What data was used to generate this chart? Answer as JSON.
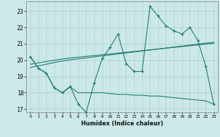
{
  "xlabel": "Humidex (Indice chaleur)",
  "x_values": [
    0,
    1,
    2,
    3,
    4,
    5,
    6,
    7,
    8,
    9,
    10,
    11,
    12,
    13,
    14,
    15,
    16,
    17,
    18,
    19,
    20,
    21,
    22,
    23
  ],
  "y_main": [
    20.2,
    19.5,
    19.2,
    18.3,
    18.0,
    18.4,
    17.3,
    16.8,
    18.6,
    20.1,
    20.8,
    21.6,
    19.8,
    19.3,
    19.3,
    23.3,
    22.7,
    22.1,
    21.8,
    21.6,
    22.0,
    21.2,
    19.6,
    17.3
  ],
  "y_trend1": [
    19.55,
    19.65,
    19.75,
    19.85,
    19.95,
    20.02,
    20.08,
    20.14,
    20.2,
    20.26,
    20.32,
    20.38,
    20.44,
    20.5,
    20.56,
    20.62,
    20.68,
    20.74,
    20.8,
    20.86,
    20.92,
    20.98,
    21.04,
    21.1
  ],
  "y_trend2": [
    19.75,
    19.83,
    19.91,
    19.99,
    20.07,
    20.13,
    20.18,
    20.23,
    20.28,
    20.33,
    20.38,
    20.43,
    20.48,
    20.53,
    20.58,
    20.63,
    20.68,
    20.73,
    20.78,
    20.83,
    20.88,
    20.93,
    20.98,
    21.03
  ],
  "y_flat": [
    20.2,
    19.5,
    19.2,
    18.3,
    18.0,
    18.35,
    18.0,
    18.0,
    18.0,
    18.0,
    17.95,
    17.9,
    17.9,
    17.85,
    17.85,
    17.8,
    17.8,
    17.75,
    17.7,
    17.65,
    17.6,
    17.55,
    17.5,
    17.3
  ],
  "line_color": "#1a7a6e",
  "bg_color": "#cce8e8",
  "grid_color": "#aad0d0",
  "ylim": [
    16.8,
    23.6
  ],
  "yticks": [
    17,
    18,
    19,
    20,
    21,
    22,
    23
  ],
  "xlim": [
    -0.5,
    23.5
  ],
  "xticks": [
    0,
    1,
    2,
    3,
    4,
    5,
    6,
    7,
    8,
    9,
    10,
    11,
    12,
    13,
    14,
    15,
    16,
    17,
    18,
    19,
    20,
    21,
    22,
    23
  ]
}
